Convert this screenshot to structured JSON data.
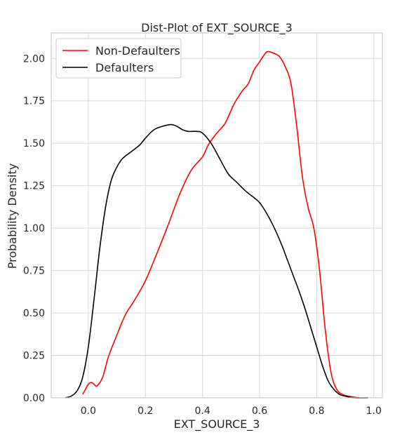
{
  "chart_data": {
    "type": "line",
    "title": "Dist-Plot of EXT_SOURCE_3",
    "xlabel": "EXT_SOURCE_3",
    "ylabel": "Probability Density",
    "xlim": [
      -0.13,
      1.03
    ],
    "ylim": [
      0,
      2.15
    ],
    "xticks": [
      "0.0",
      "0.2",
      "0.4",
      "0.6",
      "0.8",
      "1.0"
    ],
    "yticks": [
      "0.00",
      "0.25",
      "0.50",
      "0.75",
      "1.00",
      "1.25",
      "1.50",
      "1.75",
      "2.00"
    ],
    "grid": true,
    "legend_position": "upper-left",
    "series": [
      {
        "name": "Non-Defaulters",
        "color": "#ff0000",
        "x": [
          -0.02,
          -0.01,
          0.0,
          0.01,
          0.02,
          0.03,
          0.05,
          0.07,
          0.1,
          0.13,
          0.16,
          0.2,
          0.24,
          0.28,
          0.32,
          0.36,
          0.4,
          0.42,
          0.45,
          0.48,
          0.51,
          0.54,
          0.56,
          0.58,
          0.6,
          0.62,
          0.63,
          0.65,
          0.67,
          0.69,
          0.71,
          0.73,
          0.75,
          0.77,
          0.79,
          0.81,
          0.83,
          0.85,
          0.87,
          0.89,
          0.91,
          0.95,
          0.98
        ],
        "y": [
          0.02,
          0.05,
          0.08,
          0.09,
          0.08,
          0.07,
          0.12,
          0.24,
          0.37,
          0.49,
          0.57,
          0.69,
          0.85,
          1.02,
          1.2,
          1.34,
          1.42,
          1.49,
          1.56,
          1.62,
          1.73,
          1.81,
          1.85,
          1.93,
          1.98,
          2.03,
          2.04,
          2.03,
          2.01,
          1.95,
          1.85,
          1.6,
          1.3,
          1.12,
          1.0,
          0.75,
          0.4,
          0.15,
          0.05,
          0.02,
          0.01,
          0.0,
          0.0
        ]
      },
      {
        "name": "Defaulters",
        "color": "#000000",
        "x": [
          -0.08,
          -0.06,
          -0.04,
          -0.02,
          0.0,
          0.02,
          0.04,
          0.06,
          0.08,
          0.1,
          0.12,
          0.15,
          0.18,
          0.2,
          0.23,
          0.26,
          0.29,
          0.31,
          0.33,
          0.35,
          0.38,
          0.4,
          0.43,
          0.46,
          0.49,
          0.52,
          0.55,
          0.58,
          0.6,
          0.62,
          0.64,
          0.66,
          0.68,
          0.7,
          0.72,
          0.74,
          0.76,
          0.78,
          0.8,
          0.82,
          0.84,
          0.86,
          0.88,
          0.9,
          0.93,
          0.98
        ],
        "y": [
          0.0,
          0.01,
          0.04,
          0.12,
          0.3,
          0.58,
          0.88,
          1.12,
          1.28,
          1.36,
          1.41,
          1.45,
          1.49,
          1.53,
          1.58,
          1.6,
          1.61,
          1.6,
          1.58,
          1.57,
          1.57,
          1.56,
          1.5,
          1.41,
          1.32,
          1.27,
          1.22,
          1.18,
          1.15,
          1.1,
          1.04,
          0.97,
          0.89,
          0.8,
          0.71,
          0.62,
          0.52,
          0.41,
          0.3,
          0.19,
          0.1,
          0.05,
          0.02,
          0.01,
          0.0,
          0.0
        ]
      }
    ]
  }
}
